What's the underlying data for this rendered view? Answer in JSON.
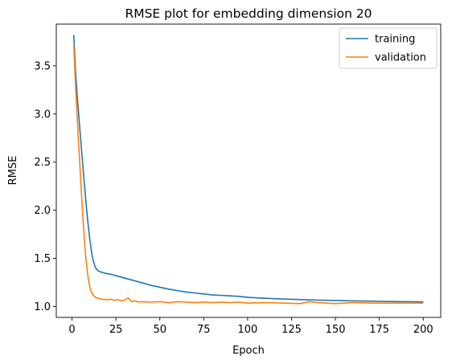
{
  "chart_data": {
    "type": "line",
    "title": "RMSE plot for embedding dimension 20",
    "xlabel": "Epoch",
    "ylabel": "RMSE",
    "xlim": [
      -8.95,
      209.95
    ],
    "ylim": [
      0.8865,
      3.9335
    ],
    "xticks": [
      0,
      25,
      50,
      75,
      100,
      125,
      150,
      175,
      200
    ],
    "xtick_labels": [
      "0",
      "25",
      "50",
      "75",
      "100",
      "125",
      "150",
      "175",
      "200"
    ],
    "yticks": [
      1.0,
      1.5,
      2.0,
      2.5,
      3.0,
      3.5
    ],
    "ytick_labels": [
      "1.0",
      "1.5",
      "2.0",
      "2.5",
      "3.0",
      "3.5"
    ],
    "grid": false,
    "legend_position": "top-right",
    "series": [
      {
        "name": "training",
        "color": "#1f77b4",
        "x": [
          1,
          2,
          3,
          4,
          5,
          6,
          7,
          8,
          9,
          10,
          11,
          12,
          13,
          14,
          15,
          16,
          17,
          18,
          19,
          20,
          22,
          25,
          30,
          35,
          40,
          45,
          50,
          55,
          60,
          65,
          70,
          75,
          80,
          85,
          90,
          95,
          100,
          110,
          120,
          130,
          140,
          150,
          160,
          170,
          180,
          190,
          200
        ],
        "values": [
          3.82,
          3.45,
          3.18,
          2.95,
          2.72,
          2.5,
          2.28,
          2.07,
          1.88,
          1.72,
          1.58,
          1.48,
          1.42,
          1.385,
          1.37,
          1.36,
          1.355,
          1.35,
          1.345,
          1.34,
          1.335,
          1.32,
          1.295,
          1.27,
          1.245,
          1.22,
          1.2,
          1.18,
          1.165,
          1.15,
          1.14,
          1.13,
          1.12,
          1.115,
          1.11,
          1.105,
          1.095,
          1.085,
          1.078,
          1.072,
          1.066,
          1.062,
          1.058,
          1.055,
          1.052,
          1.05,
          1.048
        ]
      },
      {
        "name": "validation",
        "color": "#ff7f0e",
        "x": [
          1,
          2,
          3,
          4,
          5,
          6,
          7,
          8,
          9,
          10,
          11,
          12,
          13,
          14,
          15,
          16,
          17,
          18,
          19,
          20,
          22,
          24,
          26,
          28,
          30,
          32,
          34,
          36,
          38,
          40,
          45,
          50,
          55,
          60,
          65,
          70,
          75,
          80,
          85,
          90,
          95,
          100,
          110,
          120,
          130,
          135,
          140,
          150,
          160,
          170,
          180,
          190,
          200
        ],
        "values": [
          3.72,
          3.3,
          2.95,
          2.62,
          2.3,
          1.98,
          1.7,
          1.48,
          1.32,
          1.21,
          1.15,
          1.12,
          1.1,
          1.09,
          1.085,
          1.08,
          1.075,
          1.075,
          1.07,
          1.07,
          1.075,
          1.065,
          1.07,
          1.06,
          1.065,
          1.09,
          1.05,
          1.06,
          1.045,
          1.05,
          1.045,
          1.05,
          1.04,
          1.05,
          1.045,
          1.04,
          1.045,
          1.04,
          1.045,
          1.04,
          1.045,
          1.035,
          1.04,
          1.035,
          1.03,
          1.05,
          1.04,
          1.03,
          1.04,
          1.035,
          1.035,
          1.035,
          1.035
        ]
      }
    ]
  }
}
